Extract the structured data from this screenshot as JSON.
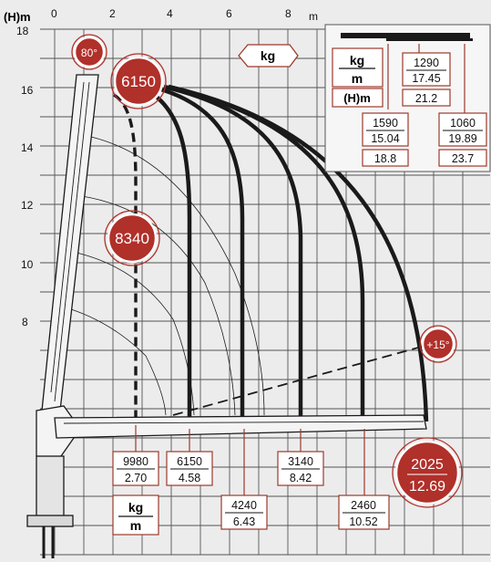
{
  "axes": {
    "y_title": "(H)m",
    "x_unit": "m",
    "x_ticks": [
      "0",
      "2",
      "4",
      "6",
      "8"
    ],
    "y_ticks": [
      "18",
      "16",
      "14",
      "12",
      "10",
      "8"
    ]
  },
  "angles": {
    "max": "80°",
    "min": "+15°"
  },
  "colors": {
    "accent": "#b0302a",
    "line": "#1a1a1a",
    "grid": "#555555"
  },
  "legend": {
    "kg_tag": "kg",
    "table_unit_kg": "kg",
    "table_unit_m": "m",
    "table_unit_hm": "(H)m",
    "bottom_unit_kg": "kg",
    "bottom_unit_m": "m",
    "ext_1": {
      "kg": "1590",
      "m": "15.04",
      "h": "18.8"
    },
    "ext_2": {
      "kg": "1290",
      "m": "17.45",
      "h": "21.2"
    },
    "ext_3": {
      "kg": "1060",
      "m": "19.89",
      "h": "23.7"
    }
  },
  "bubbles": {
    "top": "6150",
    "mid": "8340",
    "end_kg": "2025",
    "end_m": "12.69"
  },
  "loads": [
    {
      "kg": "9980",
      "m": "2.70"
    },
    {
      "kg": "6150",
      "m": "4.58"
    },
    {
      "kg": "4240",
      "m": "6.43"
    },
    {
      "kg": "3140",
      "m": "8.42"
    },
    {
      "kg": "2460",
      "m": "10.52"
    }
  ]
}
